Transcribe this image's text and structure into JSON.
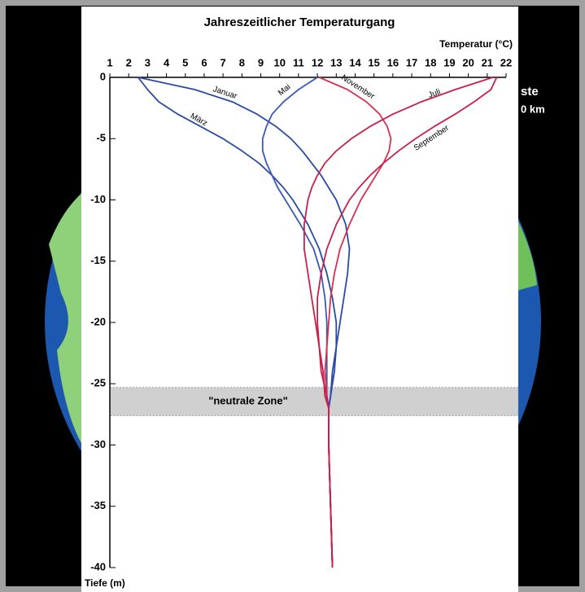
{
  "chart_data": {
    "type": "line",
    "title": "Jahreszeitlicher Temperaturgang",
    "xlabel": "Temperatur (°C)",
    "ylabel": "Tiefe (m)",
    "annotation": "\"neutrale Zone\"",
    "neutral_zone": [
      -25.3,
      -27.6
    ],
    "background_labels": [
      "ste",
      "0 km"
    ],
    "xlim": [
      1,
      22
    ],
    "xticks": [
      1,
      2,
      3,
      4,
      5,
      6,
      7,
      8,
      9,
      10,
      11,
      12,
      13,
      14,
      15,
      16,
      17,
      18,
      19,
      20,
      21,
      22
    ],
    "ylim": [
      -40,
      0
    ],
    "yticks": [
      0,
      -5,
      -10,
      -15,
      -20,
      -25,
      -30,
      -35,
      -40
    ],
    "depth": [
      0,
      -1,
      -2,
      -3,
      -4,
      -5,
      -6,
      -7,
      -8,
      -9,
      -10,
      -12,
      -14,
      -16,
      -18,
      -20,
      -22,
      -24,
      -26,
      -27,
      -30,
      -35,
      -40
    ],
    "series": [
      {
        "name": "Januar",
        "color": "#2a4aa8",
        "values": [
          2.5,
          5.5,
          7.5,
          8.8,
          9.8,
          10.6,
          11.2,
          11.7,
          12.2,
          12.6,
          13.0,
          13.5,
          13.7,
          13.6,
          13.4,
          13.2,
          13.0,
          12.8,
          12.7,
          12.6,
          12.6,
          12.7,
          12.8
        ]
      },
      {
        "name": "März",
        "color": "#2a4aa8",
        "values": [
          2.5,
          3.0,
          3.6,
          4.6,
          5.8,
          7.0,
          8.0,
          8.9,
          9.6,
          10.2,
          10.7,
          11.5,
          12.1,
          12.5,
          12.8,
          13.0,
          13.0,
          12.9,
          12.7,
          12.6,
          12.6,
          12.7,
          12.8
        ]
      },
      {
        "name": "Mai",
        "color": "#3a5ab8",
        "values": [
          12.0,
          11.0,
          10.2,
          9.6,
          9.3,
          9.1,
          9.1,
          9.3,
          9.6,
          9.9,
          10.3,
          11.1,
          11.8,
          12.2,
          12.4,
          12.5,
          12.5,
          12.5,
          12.5,
          12.6,
          12.6,
          12.7,
          12.8
        ]
      },
      {
        "name": "November",
        "color": "#d83050",
        "values": [
          12.1,
          13.6,
          14.6,
          15.3,
          15.7,
          15.9,
          15.8,
          15.5,
          15.1,
          14.7,
          14.3,
          13.7,
          13.2,
          12.9,
          12.7,
          12.6,
          12.5,
          12.4,
          12.5,
          12.6,
          12.6,
          12.7,
          12.8
        ]
      },
      {
        "name": "Juli",
        "color": "#c8204a",
        "values": [
          21.3,
          19.3,
          17.5,
          16.0,
          14.8,
          13.8,
          13.0,
          12.4,
          12.0,
          11.7,
          11.5,
          11.3,
          11.3,
          11.5,
          11.7,
          11.9,
          12.1,
          12.3,
          12.4,
          12.6,
          12.6,
          12.7,
          12.8
        ]
      },
      {
        "name": "September",
        "color": "#c8204a",
        "values": [
          21.5,
          21.2,
          20.3,
          19.3,
          18.2,
          17.2,
          16.3,
          15.5,
          14.8,
          14.2,
          13.7,
          13.0,
          12.5,
          12.2,
          12.0,
          12.0,
          12.1,
          12.2,
          12.5,
          12.6,
          12.6,
          12.7,
          12.8
        ]
      }
    ]
  }
}
